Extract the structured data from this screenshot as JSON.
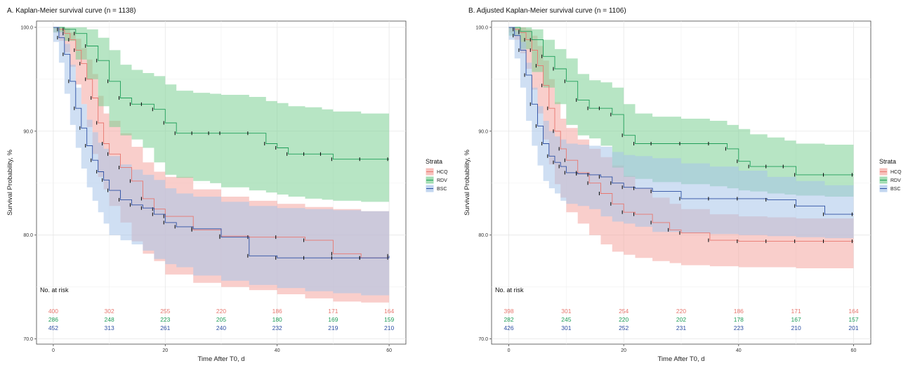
{
  "chart_data": [
    {
      "type": "line",
      "subtype": "kaplan-meier",
      "title": "A. Kaplan-Meier survival curve (n = 1138)",
      "xlabel": "Time After T0, d",
      "ylabel": "Survival Probability, %",
      "xlim": [
        -3,
        63
      ],
      "ylim": [
        69.5,
        100.6
      ],
      "xticks": [
        0,
        20,
        40,
        60
      ],
      "yticks": [
        70.0,
        80.0,
        90.0,
        100.0
      ],
      "ytick_labels": [
        "70.0",
        "80.0",
        "90.0",
        "100.0"
      ],
      "grid": true,
      "legend": {
        "title": "Strata",
        "position": "right",
        "entries": [
          "HCQ",
          "RDV",
          "BSC"
        ]
      },
      "risk_table": {
        "title": "No. at risk",
        "times": [
          0,
          10,
          20,
          30,
          40,
          50,
          60
        ],
        "rows": [
          {
            "name": "HCQ",
            "values": [
              400,
              302,
              255,
              220,
              186,
              171,
              164
            ]
          },
          {
            "name": "RDV",
            "values": [
              286,
              248,
              223,
              205,
              180,
              169,
              159
            ]
          },
          {
            "name": "BSC",
            "values": [
              452,
              313,
              261,
              240,
              232,
              219,
              210
            ]
          }
        ]
      },
      "series": [
        {
          "name": "HCQ",
          "color": "#e8776f",
          "fill": "#f4a6a0",
          "x": [
            0,
            1,
            2,
            3,
            4,
            5,
            6,
            7,
            8,
            9,
            10,
            12,
            14,
            16,
            18,
            20,
            25,
            30,
            35,
            40,
            45,
            50,
            55,
            60
          ],
          "y": [
            100,
            99.8,
            99.4,
            98.8,
            97.8,
            96.5,
            95.0,
            93.2,
            90.8,
            88.8,
            87.8,
            86.5,
            85.2,
            83.5,
            82.5,
            81.8,
            80.5,
            79.9,
            79.8,
            79.8,
            79.5,
            78.2,
            77.8,
            77.8
          ],
          "lower": [
            100,
            99.5,
            98.7,
            97.6,
            96.2,
            94.5,
            92.6,
            90.4,
            87.8,
            85.6,
            84.4,
            82.8,
            81.2,
            79.4,
            78.2,
            77.5,
            76.2,
            75.4,
            75.0,
            74.7,
            74.3,
            73.9,
            73.6,
            73.5
          ],
          "upper": [
            100,
            100,
            99.9,
            99.5,
            98.9,
            98.0,
            96.9,
            95.5,
            93.4,
            91.7,
            91.0,
            89.8,
            88.5,
            87.0,
            86.1,
            85.6,
            84.4,
            83.7,
            83.3,
            83.0,
            82.7,
            82.5,
            82.3,
            82.2
          ]
        },
        {
          "name": "RDV",
          "color": "#1f9e59",
          "fill": "#7ccf94",
          "x": [
            0,
            2,
            4,
            6,
            8,
            10,
            12,
            14,
            16,
            18,
            20,
            22,
            25,
            28,
            30,
            35,
            38,
            40,
            42,
            45,
            48,
            50,
            55,
            60
          ],
          "y": [
            100,
            99.8,
            99.4,
            98.2,
            96.8,
            94.8,
            93.2,
            92.6,
            92.6,
            92.1,
            90.8,
            89.8,
            89.8,
            89.8,
            89.8,
            89.8,
            88.8,
            88.4,
            87.8,
            87.8,
            87.8,
            87.3,
            87.3,
            87.3
          ],
          "lower": [
            100,
            99.5,
            98.7,
            96.9,
            95.0,
            92.4,
            90.4,
            89.6,
            89.2,
            88.4,
            87.0,
            85.8,
            85.5,
            85.2,
            85.0,
            84.6,
            84.3,
            84.1,
            83.9,
            83.7,
            83.5,
            83.4,
            83.3,
            83.2
          ],
          "upper": [
            100,
            100,
            100,
            99.8,
            99.0,
            97.8,
            96.4,
            95.9,
            95.6,
            95.3,
            94.5,
            93.9,
            93.7,
            93.6,
            93.5,
            93.3,
            92.9,
            92.7,
            92.4,
            92.3,
            92.1,
            91.9,
            91.7,
            91.6
          ]
        },
        {
          "name": "BSC",
          "color": "#2c4fa3",
          "fill": "#a8c4ea",
          "x": [
            0,
            1,
            2,
            3,
            4,
            5,
            6,
            7,
            8,
            9,
            10,
            12,
            14,
            16,
            18,
            20,
            22,
            25,
            30,
            35,
            40,
            45,
            50,
            55,
            60
          ],
          "y": [
            100,
            99.0,
            97.4,
            94.8,
            92.2,
            90.3,
            88.6,
            87.2,
            86.1,
            85.3,
            84.3,
            83.4,
            82.9,
            82.6,
            82.0,
            81.2,
            80.8,
            80.6,
            79.8,
            78.0,
            77.8,
            77.8,
            77.8,
            77.8,
            78.0
          ],
          "lower": [
            100,
            98.6,
            96.6,
            93.6,
            90.6,
            88.4,
            86.4,
            84.6,
            83.3,
            82.2,
            81.1,
            80.0,
            79.5,
            79.1,
            78.5,
            77.7,
            77.2,
            76.9,
            76.1,
            75.6,
            75.2,
            74.9,
            74.6,
            74.4,
            74.2
          ],
          "upper": [
            100,
            99.6,
            98.4,
            96.4,
            94.2,
            92.6,
            91.1,
            89.9,
            88.9,
            88.3,
            87.6,
            86.8,
            86.3,
            85.8,
            85.3,
            84.5,
            84.0,
            83.7,
            83.2,
            82.8,
            82.6,
            82.5,
            82.4,
            82.3,
            82.3
          ]
        }
      ]
    },
    {
      "type": "line",
      "subtype": "kaplan-meier",
      "title": "B. Adjusted Kaplan-Meier survival curve (n = 1106)",
      "xlabel": "Time After T0, d",
      "ylabel": "Survival Probability, %",
      "xlim": [
        -3,
        63
      ],
      "ylim": [
        69.5,
        100.6
      ],
      "xticks": [
        0,
        20,
        40,
        60
      ],
      "yticks": [
        70.0,
        80.0,
        90.0,
        100.0
      ],
      "ytick_labels": [
        "70.0",
        "80.0",
        "90.0",
        "100.0"
      ],
      "grid": true,
      "legend": {
        "title": "Strata",
        "position": "right",
        "entries": [
          "HCQ",
          "RDV",
          "BSC"
        ]
      },
      "risk_table": {
        "title": "No. at risk",
        "times": [
          0,
          10,
          20,
          30,
          40,
          50,
          60
        ],
        "rows": [
          {
            "name": "HCQ",
            "values": [
              398,
              301,
              254,
              220,
              186,
              171,
              164
            ]
          },
          {
            "name": "RDV",
            "values": [
              282,
              245,
              220,
              202,
              178,
              167,
              157
            ]
          },
          {
            "name": "BSC",
            "values": [
              426,
              301,
              252,
              231,
              223,
              210,
              201
            ]
          }
        ]
      },
      "series": [
        {
          "name": "HCQ",
          "color": "#e8776f",
          "fill": "#f4a6a0",
          "x": [
            0,
            1,
            2,
            3,
            4,
            5,
            6,
            7,
            8,
            9,
            10,
            12,
            14,
            16,
            18,
            20,
            22,
            25,
            28,
            30,
            35,
            40,
            45,
            50,
            55,
            60
          ],
          "y": [
            100,
            99.8,
            99.5,
            98.8,
            97.8,
            96.3,
            94.4,
            92.2,
            90.0,
            88.3,
            87.2,
            86.0,
            85.0,
            84.0,
            83.0,
            82.2,
            82.0,
            81.2,
            80.5,
            80.2,
            79.5,
            79.4,
            79.4,
            79.4,
            79.4,
            79.4
          ],
          "lower": [
            100,
            99.5,
            98.8,
            97.5,
            96.0,
            94.0,
            91.7,
            89.2,
            86.8,
            84.9,
            83.6,
            82.2,
            81.1,
            80.0,
            79.1,
            78.4,
            78.1,
            77.8,
            77.5,
            77.3,
            77.1,
            77.0,
            76.9,
            76.9,
            76.8,
            76.8
          ],
          "upper": [
            100,
            100,
            100,
            99.8,
            99.2,
            98.2,
            96.8,
            95.0,
            92.8,
            91.2,
            90.3,
            89.2,
            88.3,
            87.5,
            86.7,
            85.7,
            84.5,
            83.6,
            83.0,
            82.5,
            82.0,
            81.8,
            81.7,
            81.6,
            81.6,
            81.6
          ]
        },
        {
          "name": "RDV",
          "color": "#1f9e59",
          "fill": "#7ccf94",
          "x": [
            0,
            2,
            4,
            6,
            8,
            10,
            12,
            14,
            16,
            18,
            20,
            22,
            25,
            30,
            35,
            38,
            40,
            42,
            45,
            48,
            50,
            55,
            60
          ],
          "y": [
            100,
            99.6,
            98.8,
            97.2,
            96.0,
            94.8,
            93.0,
            92.2,
            92.2,
            91.6,
            89.6,
            88.8,
            88.8,
            88.8,
            88.8,
            88.3,
            87.1,
            86.6,
            86.6,
            86.6,
            85.8,
            85.8,
            85.8
          ],
          "lower": [
            100,
            99.2,
            97.9,
            95.7,
            94.2,
            92.6,
            90.6,
            89.6,
            89.3,
            88.6,
            86.5,
            85.6,
            85.4,
            85.1,
            84.9,
            84.7,
            84.5,
            84.3,
            84.2,
            84.0,
            83.9,
            83.8,
            83.7
          ],
          "upper": [
            100,
            100,
            99.8,
            98.8,
            97.9,
            97.0,
            95.5,
            94.9,
            94.7,
            94.2,
            92.6,
            91.7,
            91.4,
            91.2,
            91.0,
            90.6,
            90.2,
            89.7,
            89.4,
            89.1,
            88.8,
            88.7,
            88.7
          ]
        },
        {
          "name": "BSC",
          "color": "#2c4fa3",
          "fill": "#a8c4ea",
          "x": [
            0,
            1,
            2,
            3,
            4,
            5,
            6,
            7,
            8,
            9,
            10,
            12,
            14,
            16,
            18,
            20,
            22,
            25,
            30,
            35,
            40,
            45,
            50,
            55,
            60
          ],
          "y": [
            100,
            99.2,
            97.8,
            95.4,
            92.6,
            90.5,
            88.8,
            87.6,
            87.0,
            86.6,
            86.0,
            85.9,
            85.8,
            85.6,
            85.0,
            84.6,
            84.5,
            84.2,
            83.5,
            83.5,
            83.5,
            83.4,
            82.8,
            82.0,
            82.0
          ],
          "lower": [
            100,
            98.8,
            97.0,
            94.2,
            91.0,
            88.6,
            86.7,
            85.2,
            84.5,
            84.0,
            83.3,
            83.0,
            82.8,
            82.5,
            81.8,
            81.3,
            81.1,
            80.8,
            80.3,
            80.2,
            80.1,
            80.0,
            79.9,
            79.8,
            79.7
          ],
          "upper": [
            100,
            99.6,
            98.6,
            96.6,
            94.2,
            92.4,
            91.0,
            90.0,
            89.5,
            89.2,
            88.8,
            88.7,
            88.6,
            88.5,
            88.0,
            87.7,
            87.6,
            87.4,
            86.9,
            86.6,
            86.2,
            85.6,
            85.2,
            84.8,
            84.6
          ]
        }
      ]
    }
  ]
}
